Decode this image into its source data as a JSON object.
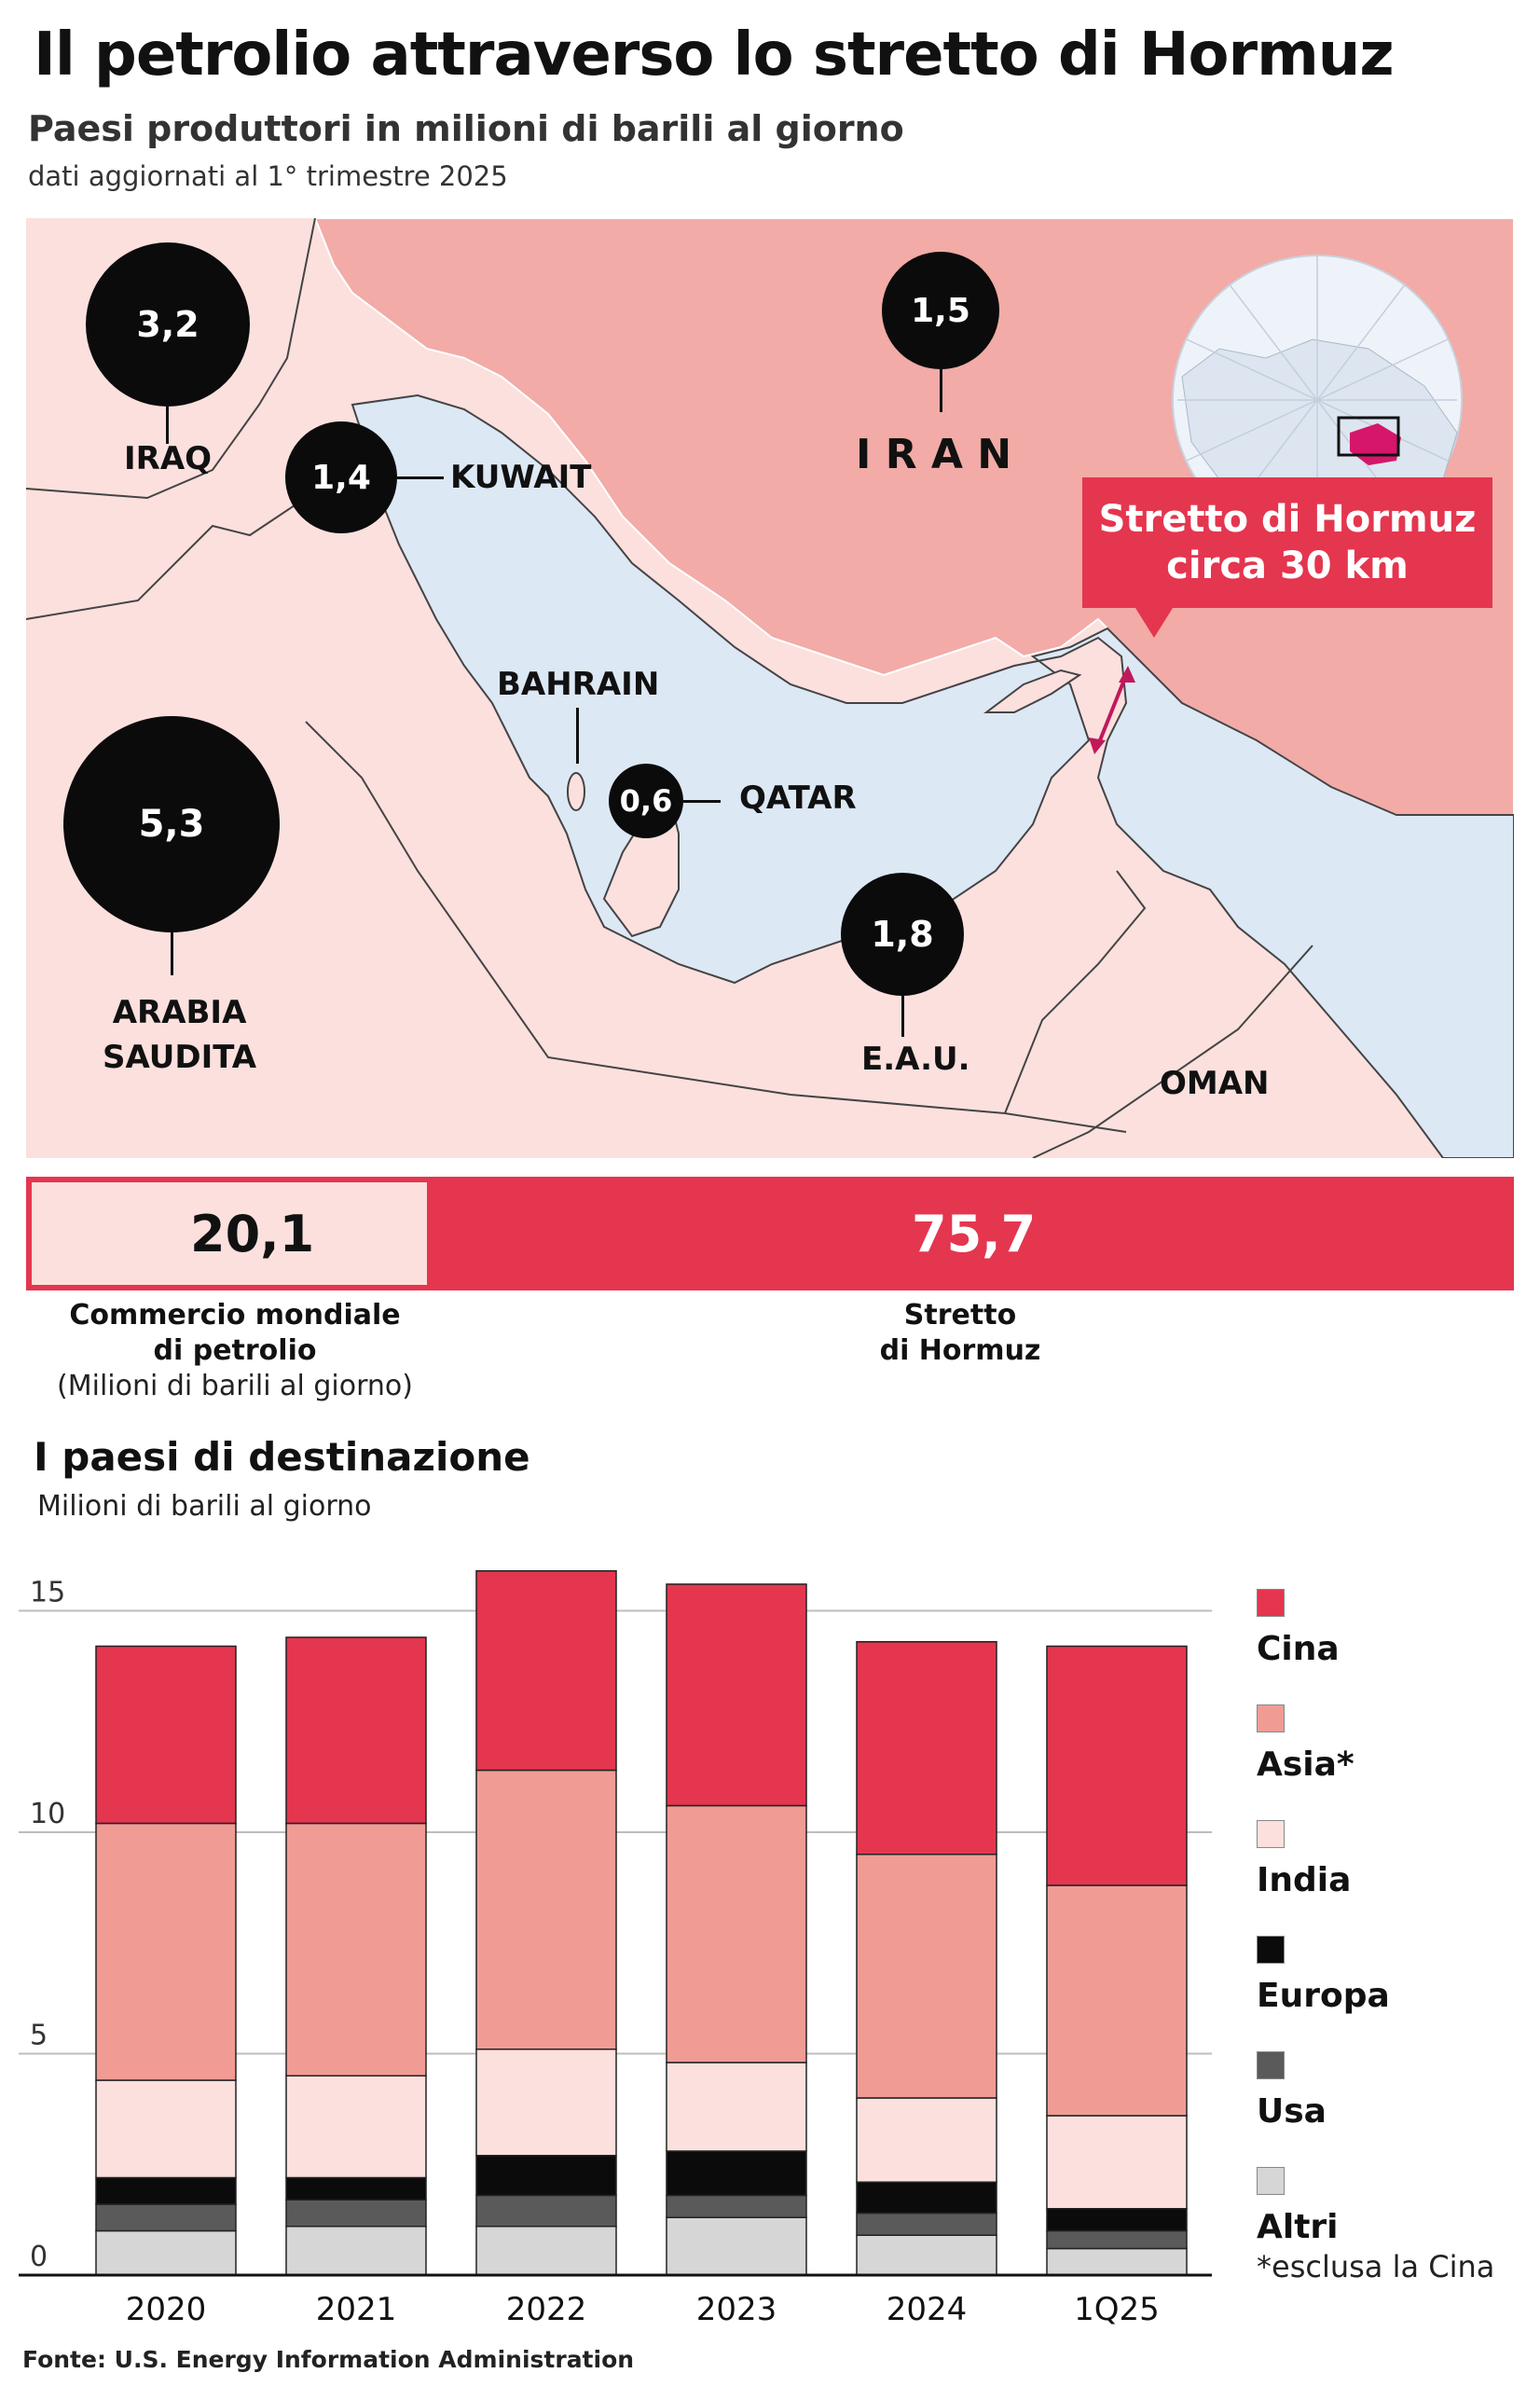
{
  "title": "Il petrolio attraverso lo stretto di Hormuz",
  "subtitle": "Paesi produttori in milioni di barili al giorno",
  "note": "dati aggiornati al 1° trimestre 2025",
  "map": {
    "countries": [
      {
        "name": "IRAQ",
        "value": "3,2"
      },
      {
        "name": "KUWAIT",
        "value": "1,4"
      },
      {
        "name": "IRAN",
        "value": "1,5"
      },
      {
        "name": "BAHRAIN",
        "value": ""
      },
      {
        "name": "QATAR",
        "value": "0,6"
      },
      {
        "name": "ARABIA SAUDITA",
        "value": "5,3"
      },
      {
        "name": "E.A.U.",
        "value": "1,8"
      },
      {
        "name": "OMAN",
        "value": ""
      }
    ],
    "iran_label": "I R A N",
    "saudi_line1": "ARABIA",
    "saudi_line2": "SAUDITA",
    "hormuz_line1": "Stretto di Hormuz",
    "hormuz_line2": "circa 30 km",
    "colors": {
      "sea": "#dde8f5",
      "iran": "#f2aba6",
      "land": "#fbe0de",
      "accent": "#e4364f"
    }
  },
  "share_bar": {
    "world_value": "20,1",
    "hormuz_value": "75,7",
    "world_label_1": "Commercio mondiale",
    "world_label_2": "di petrolio",
    "world_label_3": "(Milioni di barili al giorno)",
    "hormuz_label_1": "Stretto",
    "hormuz_label_2": "di Hormuz"
  },
  "destinations_title": "I paesi di destinazione",
  "destinations_units": "Milioni di barili al giorno",
  "legend_note": "*esclusa la Cina",
  "source": "Fonte: U.S. Energy Information Administration",
  "chart_data": {
    "type": "bar",
    "stacked": true,
    "title": "I paesi di destinazione",
    "ylabel": "Milioni di barili al giorno",
    "categories": [
      "2020",
      "2021",
      "2022",
      "2023",
      "2024",
      "1Q25"
    ],
    "ylim": [
      0,
      16
    ],
    "yticks": [
      0,
      5,
      10,
      15
    ],
    "grid": true,
    "legend": "right",
    "series": [
      {
        "name": "Altri",
        "color": "#d6d6d6",
        "values": [
          1.0,
          1.1,
          1.1,
          1.3,
          0.9,
          0.6
        ]
      },
      {
        "name": "Usa",
        "color": "#5a5a5a",
        "values": [
          0.6,
          0.6,
          0.7,
          0.5,
          0.5,
          0.4
        ]
      },
      {
        "name": "Europa",
        "color": "#0b0b0b",
        "values": [
          0.6,
          0.5,
          0.9,
          1.0,
          0.7,
          0.5
        ]
      },
      {
        "name": "India",
        "color": "#fbe0de",
        "values": [
          2.2,
          2.3,
          2.4,
          2.0,
          1.9,
          2.1
        ]
      },
      {
        "name": "Asia*",
        "color": "#f09c95",
        "values": [
          5.8,
          5.7,
          6.3,
          5.8,
          5.5,
          5.2
        ]
      },
      {
        "name": "Cina",
        "color": "#e4364f",
        "values": [
          4.0,
          4.2,
          4.5,
          5.0,
          4.8,
          5.4
        ]
      }
    ]
  }
}
